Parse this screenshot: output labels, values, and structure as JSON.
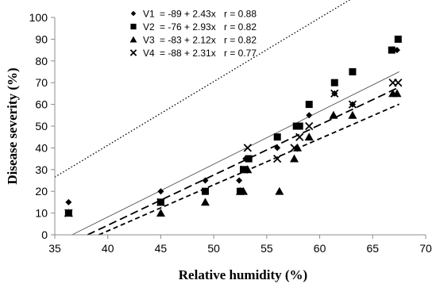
{
  "chart_data": {
    "type": "scatter",
    "xlabel": "Relative humidity (%)",
    "ylabel": "Disease severity (%)",
    "xlim": [
      35,
      70
    ],
    "ylim": [
      0,
      100
    ],
    "x_ticks": [
      35,
      40,
      45,
      50,
      55,
      60,
      65,
      70
    ],
    "y_ticks": [
      0,
      10,
      20,
      30,
      40,
      50,
      60,
      70,
      80,
      90,
      100
    ],
    "grid": false,
    "legend_position": "top-left",
    "series": [
      {
        "name": "V1",
        "equation": "= -89 + 2.43x",
        "r_label": "r = 0.88",
        "intercept": -89,
        "slope": 2.43,
        "marker": "diamond",
        "line_style": "solid",
        "points": [
          [
            36.3,
            15
          ],
          [
            45,
            20
          ],
          [
            49.2,
            25
          ],
          [
            52.4,
            25
          ],
          [
            53,
            35
          ],
          [
            56,
            40
          ],
          [
            57.8,
            40
          ],
          [
            59,
            55
          ],
          [
            61.4,
            65
          ],
          [
            63.1,
            60
          ],
          [
            67.3,
            85
          ]
        ]
      },
      {
        "name": "V2",
        "equation": "= -76 + 2.93x",
        "r_label": "r = 0.82",
        "intercept": -76,
        "slope": 2.93,
        "marker": "square",
        "line_style": "dotted",
        "points": [
          [
            36.3,
            10
          ],
          [
            45,
            15
          ],
          [
            49.2,
            20
          ],
          [
            52.5,
            20
          ],
          [
            52.8,
            30
          ],
          [
            53.3,
            35
          ],
          [
            56,
            45
          ],
          [
            57.8,
            50
          ],
          [
            58.1,
            50
          ],
          [
            59,
            60
          ],
          [
            61.4,
            70
          ],
          [
            63.1,
            75
          ],
          [
            66.8,
            85
          ],
          [
            67.4,
            90
          ]
        ]
      },
      {
        "name": "V3",
        "equation": "= -83 + 2.12x",
        "r_label": "r = 0.82",
        "intercept": -83,
        "slope": 2.12,
        "marker": "triangle",
        "line_style": "dashed-short",
        "points": [
          [
            36.3,
            10
          ],
          [
            45,
            10
          ],
          [
            49.2,
            15
          ],
          [
            52.5,
            20
          ],
          [
            52.8,
            20
          ],
          [
            53.2,
            30
          ],
          [
            56.2,
            20
          ],
          [
            57.6,
            35
          ],
          [
            57.9,
            40
          ],
          [
            59,
            45
          ],
          [
            61.3,
            55
          ],
          [
            63.1,
            55
          ],
          [
            66.9,
            65
          ],
          [
            67.3,
            65
          ]
        ]
      },
      {
        "name": "V4",
        "equation": "= -88 + 2.31x",
        "r_label": "r = 0.77",
        "intercept": -88,
        "slope": 2.31,
        "marker": "x",
        "line_style": "dashed-long",
        "points": [
          [
            36.3,
            10
          ],
          [
            45,
            15
          ],
          [
            52.9,
            30
          ],
          [
            53.2,
            40
          ],
          [
            56,
            35
          ],
          [
            57.6,
            40
          ],
          [
            58.1,
            45
          ],
          [
            59,
            50
          ],
          [
            61.4,
            65
          ],
          [
            63.1,
            60
          ],
          [
            66.9,
            70
          ],
          [
            67.4,
            70
          ]
        ]
      }
    ]
  }
}
